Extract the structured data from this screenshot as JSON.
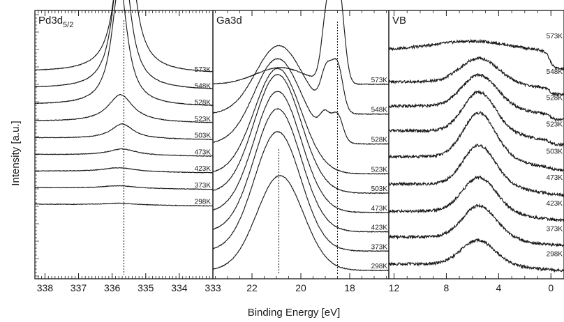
{
  "figure": {
    "ylabel": "Intensity [a.u.]",
    "xlabel": "Binding Energy [eV]"
  },
  "chart_data": [
    {
      "type": "line",
      "panel_label_main": "Pd3d",
      "panel_label_sub": "5/2",
      "xlim": [
        338.3,
        333.0
      ],
      "x_ticks": [
        "338",
        "337",
        "336",
        "335",
        "334",
        "333"
      ],
      "x_tick_values": [
        338,
        337,
        336,
        335,
        334,
        333
      ],
      "x_reversed": true,
      "reference_line_x": [
        335.65
      ],
      "series": [
        {
          "name": "573K",
          "baseline": 0.855,
          "peak_center": 335.62,
          "peak_height": 0.795,
          "peak_width": 0.28
        },
        {
          "name": "548K",
          "baseline": 0.783,
          "peak_center": 335.72,
          "peak_height": 0.66,
          "peak_width": 0.28
        },
        {
          "name": "528K",
          "baseline": 0.712,
          "peak_center": 335.78,
          "peak_height": 0.535,
          "peak_width": 0.28
        },
        {
          "name": "523K",
          "baseline": 0.64,
          "peak_center": 335.75,
          "peak_height": 0.12,
          "peak_width": 0.45
        },
        {
          "name": "503K",
          "baseline": 0.568,
          "peak_center": 335.7,
          "peak_height": 0.065,
          "peak_width": 0.4
        },
        {
          "name": "473K",
          "baseline": 0.496,
          "peak_center": 335.7,
          "peak_height": 0.028,
          "peak_width": 0.5
        },
        {
          "name": "423K",
          "baseline": 0.424,
          "peak_center": 335.8,
          "peak_height": 0.018,
          "peak_width": 0.6
        },
        {
          "name": "373K",
          "baseline": 0.352,
          "peak_center": 335.8,
          "peak_height": 0.012,
          "peak_width": 0.6
        },
        {
          "name": "298K",
          "baseline": 0.28,
          "peak_center": 335.8,
          "peak_height": 0.008,
          "peak_width": 0.6
        }
      ]
    },
    {
      "type": "line",
      "panel_label_main": "Ga3d",
      "panel_label_sub": "",
      "xlim": [
        23.6,
        16.4
      ],
      "x_ticks": [
        "22",
        "20",
        "18"
      ],
      "x_tick_values": [
        22,
        20,
        18
      ],
      "x_reversed": true,
      "reference_line_x": [
        20.9,
        18.5
      ],
      "series": [
        {
          "name": "573K",
          "baseline": 2.12,
          "main_center": 20.85,
          "main_height": 0.19,
          "main_width": 1.0,
          "metal_centers": [
            18.9,
            18.45
          ],
          "metal_height": 1.05,
          "metal_width": 0.22
        },
        {
          "name": "548K",
          "baseline": 1.78,
          "main_center": 20.9,
          "main_height": 0.78,
          "main_width": 0.95,
          "metal_centers": [
            18.95,
            18.5
          ],
          "metal_height": 0.52,
          "metal_width": 0.22
        },
        {
          "name": "528K",
          "baseline": 1.44,
          "main_center": 20.95,
          "main_height": 0.97,
          "main_width": 0.95,
          "metal_centers": [
            19.0,
            18.5
          ],
          "metal_height": 0.3,
          "metal_width": 0.22
        },
        {
          "name": "523K",
          "baseline": 1.1,
          "main_center": 20.95,
          "main_height": 1.2,
          "main_width": 0.95,
          "metal_centers": [],
          "metal_height": 0,
          "metal_width": 0.22
        },
        {
          "name": "503K",
          "baseline": 0.88,
          "main_center": 20.95,
          "main_height": 1.35,
          "main_width": 0.95,
          "metal_centers": [],
          "metal_height": 0,
          "metal_width": 0.22
        },
        {
          "name": "473K",
          "baseline": 0.66,
          "main_center": 20.95,
          "main_height": 1.38,
          "main_width": 0.95,
          "metal_centers": [],
          "metal_height": 0,
          "metal_width": 0.22
        },
        {
          "name": "423K",
          "baseline": 0.44,
          "main_center": 20.95,
          "main_height": 1.4,
          "main_width": 0.95,
          "metal_centers": [],
          "metal_height": 0,
          "metal_width": 0.22
        },
        {
          "name": "373K",
          "baseline": 0.22,
          "main_center": 20.95,
          "main_height": 1.36,
          "main_width": 0.95,
          "metal_centers": [],
          "metal_height": 0,
          "metal_width": 0.22
        },
        {
          "name": "298K",
          "baseline": 0.0,
          "main_center": 20.85,
          "main_height": 1.08,
          "main_width": 0.95,
          "metal_centers": [],
          "metal_height": 0,
          "metal_width": 0.22
        }
      ]
    },
    {
      "type": "line",
      "panel_label_main": "VB",
      "panel_label_sub": "",
      "xlim": [
        12.4,
        -1.0
      ],
      "x_ticks": [
        "12",
        "8",
        "4",
        "0"
      ],
      "x_tick_values": [
        12,
        8,
        4,
        0
      ],
      "x_reversed": true,
      "reference_line_x": [],
      "series": [
        {
          "name": "573K",
          "baseline": 8.0,
          "d_center": 6.0,
          "d_height": 0.35,
          "d_width": 3.0,
          "edge": 3.0,
          "fermi_level": 0.7
        },
        {
          "name": "548K",
          "baseline": 7.0,
          "d_center": 5.5,
          "d_height": 0.95,
          "d_width": 1.4,
          "edge": 2.4,
          "fermi_level": 0.28
        },
        {
          "name": "528K",
          "baseline": 6.0,
          "d_center": 5.5,
          "d_height": 1.25,
          "d_width": 1.3,
          "edge": 2.3,
          "fermi_level": 0.24
        },
        {
          "name": "523K",
          "baseline": 5.0,
          "d_center": 5.5,
          "d_height": 1.55,
          "d_width": 1.2,
          "edge": 2.2,
          "fermi_level": 0.18
        },
        {
          "name": "503K",
          "baseline": 4.0,
          "d_center": 5.5,
          "d_height": 1.75,
          "d_width": 1.2,
          "edge": 2.2,
          "fermi_level": 0.1
        },
        {
          "name": "473K",
          "baseline": 3.0,
          "d_center": 5.5,
          "d_height": 1.55,
          "d_width": 1.2,
          "edge": 2.2,
          "fermi_level": 0.06
        },
        {
          "name": "423K",
          "baseline": 2.0,
          "d_center": 5.5,
          "d_height": 1.35,
          "d_width": 1.25,
          "edge": 2.2,
          "fermi_level": 0.03
        },
        {
          "name": "373K",
          "baseline": 1.0,
          "d_center": 5.5,
          "d_height": 1.25,
          "d_width": 1.25,
          "edge": 2.2,
          "fermi_level": 0.02
        },
        {
          "name": "298K",
          "baseline": 0.0,
          "d_center": 5.6,
          "d_height": 0.95,
          "d_width": 1.25,
          "edge": 2.2,
          "fermi_level": 0.02
        }
      ]
    }
  ]
}
